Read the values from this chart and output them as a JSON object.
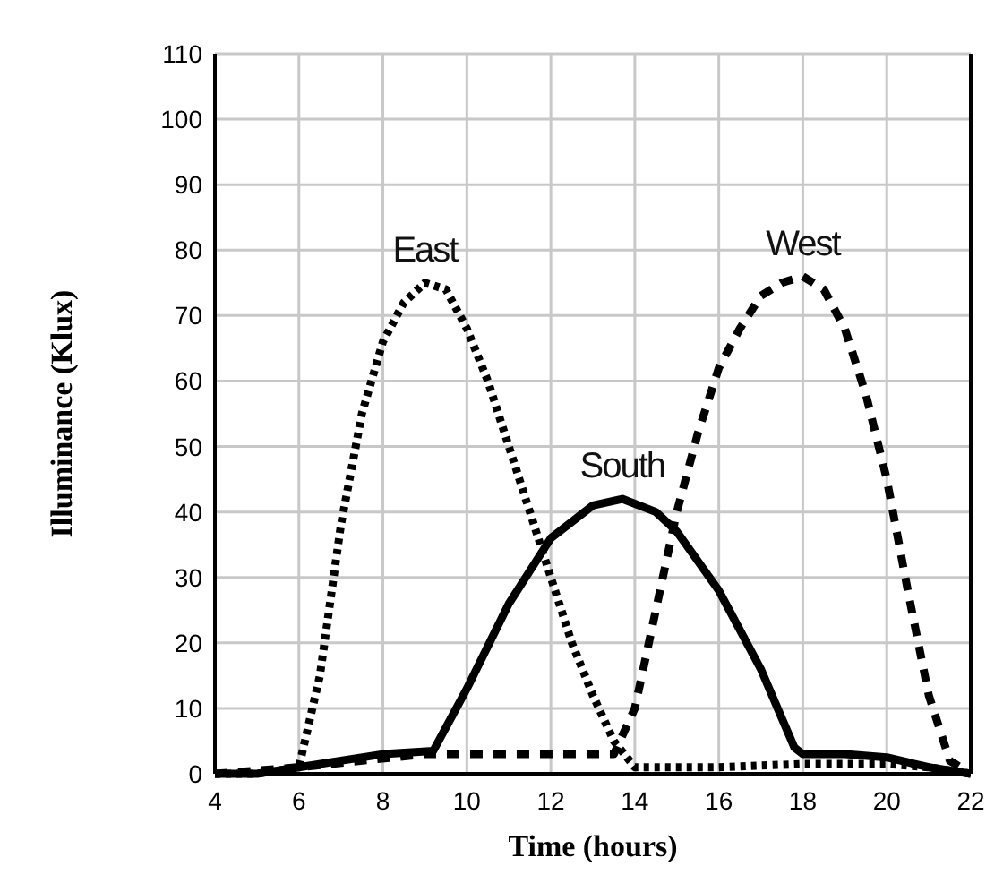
{
  "chart_data": {
    "type": "line",
    "xlabel": "Time (hours)",
    "ylabel": "Illuminance (Klux)",
    "xlim": [
      4,
      22
    ],
    "ylim": [
      0,
      110
    ],
    "xticks": [
      4,
      6,
      8,
      10,
      12,
      14,
      16,
      18,
      20,
      22
    ],
    "yticks": [
      0,
      10,
      20,
      30,
      40,
      50,
      60,
      70,
      80,
      90,
      100,
      110
    ],
    "grid": true,
    "series": [
      {
        "name": "East",
        "color": "#000000",
        "line_style": "dotted",
        "x": [
          4,
          5,
          6,
          6.5,
          7,
          7.5,
          8,
          8.5,
          9,
          9.5,
          10,
          10.5,
          11,
          11.5,
          12,
          12.5,
          13,
          13.5,
          14,
          16,
          18,
          20,
          21,
          22
        ],
        "values": [
          0,
          0,
          1,
          15,
          38,
          55,
          66,
          72,
          75,
          74,
          68,
          60,
          50,
          40,
          30,
          20,
          12,
          5,
          1,
          1,
          1.5,
          1.5,
          1,
          0
        ]
      },
      {
        "name": "South",
        "color": "#000000",
        "line_style": "solid",
        "x": [
          4,
          5,
          6,
          7,
          8,
          9.2,
          10,
          11,
          12,
          13,
          13.7,
          14.5,
          15,
          16,
          17,
          17.8,
          18,
          19,
          20,
          21,
          22
        ],
        "values": [
          0,
          0,
          1,
          2,
          3,
          3.5,
          13,
          26,
          36,
          41,
          42,
          40,
          37,
          28,
          16,
          4,
          3,
          3,
          2.5,
          1,
          0
        ]
      },
      {
        "name": "West",
        "color": "#000000",
        "line_style": "dashed",
        "x": [
          4,
          6,
          9,
          13,
          13.5,
          14,
          14.5,
          15,
          15.5,
          16,
          16.5,
          17,
          17.5,
          18,
          18.5,
          19,
          19.5,
          20,
          20.5,
          21,
          21.5,
          22
        ],
        "values": [
          0,
          1,
          3,
          3,
          3,
          10,
          25,
          40,
          52,
          62,
          68,
          73,
          75,
          76,
          74,
          68,
          58,
          45,
          28,
          12,
          2,
          0
        ]
      }
    ]
  }
}
